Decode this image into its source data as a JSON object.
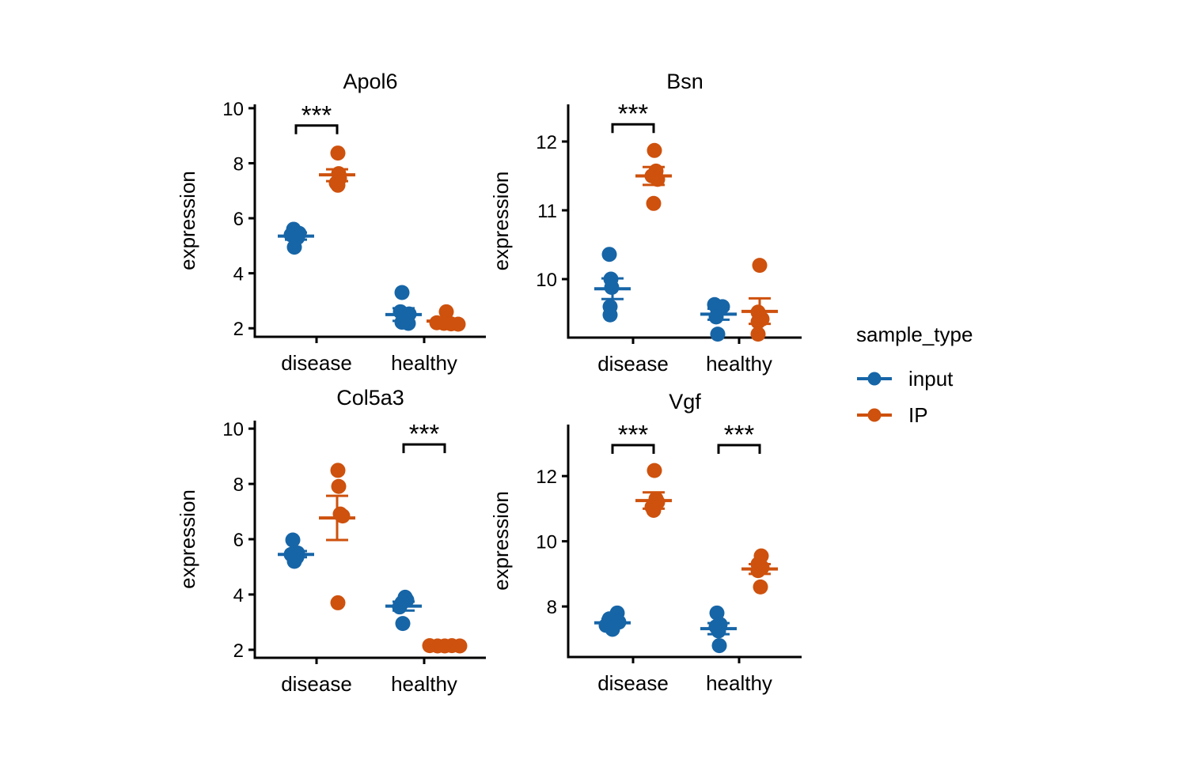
{
  "page": {
    "background": "#ffffff"
  },
  "legend": {
    "title": "sample_type",
    "items": [
      {
        "label": "input",
        "color": "#1665A7"
      },
      {
        "label": "IP",
        "color": "#CE510D"
      }
    ]
  },
  "chart_data": {
    "type": "scatter",
    "description": "Faceted dot plots of gene expression by condition, colored by sample_type, with mean and SEM error bars and significance brackets",
    "categories": [
      "disease",
      "healthy"
    ],
    "series_names": [
      "input",
      "IP"
    ],
    "colors": {
      "input": "#1665A7",
      "IP": "#CE510D"
    },
    "ylabel": "expression",
    "legend_position": "right",
    "facets": [
      {
        "title": "Apol6",
        "ylabel": "expression",
        "ylim": [
          1.69,
          10.14
        ],
        "yticks": [
          2,
          4,
          6,
          8,
          10
        ],
        "groups": [
          {
            "category": "disease",
            "series": "input",
            "mean": 5.35,
            "lo": 5.22,
            "hi": 5.48,
            "points": [
              {
                "v": 5.6,
                "dx": -3
              },
              {
                "v": 5.45,
                "dx": 4
              },
              {
                "v": 5.4,
                "dx": -6
              },
              {
                "v": 5.3,
                "dx": 2
              },
              {
                "v": 4.95,
                "dx": -2
              }
            ]
          },
          {
            "category": "disease",
            "series": "IP",
            "mean": 7.58,
            "lo": 7.35,
            "hi": 7.78,
            "points": [
              {
                "v": 8.37,
                "dx": 1
              },
              {
                "v": 7.62,
                "dx": 2
              },
              {
                "v": 7.45,
                "dx": 3
              },
              {
                "v": 7.28,
                "dx": -1
              },
              {
                "v": 7.2,
                "dx": 1
              }
            ]
          },
          {
            "category": "healthy",
            "series": "input",
            "mean": 2.5,
            "lo": 2.27,
            "hi": 2.73,
            "points": [
              {
                "v": 3.3,
                "dx": -2
              },
              {
                "v": 2.6,
                "dx": -4
              },
              {
                "v": 2.52,
                "dx": 7
              },
              {
                "v": 2.22,
                "dx": -2
              },
              {
                "v": 2.18,
                "dx": 6
              }
            ]
          },
          {
            "category": "healthy",
            "series": "IP",
            "mean": 2.26,
            "lo": 2.17,
            "hi": 2.35,
            "points": [
              {
                "v": 2.6,
                "dx": 2
              },
              {
                "v": 2.2,
                "dx": -10
              },
              {
                "v": 2.18,
                "dx": -1
              },
              {
                "v": 2.16,
                "dx": 8
              },
              {
                "v": 2.15,
                "dx": 17
              }
            ]
          }
        ],
        "brackets": [
          {
            "category": "disease",
            "y": 9.37,
            "label": "***"
          }
        ]
      },
      {
        "title": "Bsn",
        "ylabel": "expression",
        "ylim": [
          9.15,
          12.54
        ],
        "yticks": [
          10,
          11,
          12
        ],
        "groups": [
          {
            "category": "disease",
            "series": "input",
            "mean": 9.86,
            "lo": 9.71,
            "hi": 10.01,
            "points": [
              {
                "v": 10.36,
                "dx": -4
              },
              {
                "v": 10.0,
                "dx": -2
              },
              {
                "v": 9.88,
                "dx": -1
              },
              {
                "v": 9.6,
                "dx": -3
              },
              {
                "v": 9.48,
                "dx": -3
              }
            ]
          },
          {
            "category": "disease",
            "series": "IP",
            "mean": 11.5,
            "lo": 11.37,
            "hi": 11.63,
            "points": [
              {
                "v": 11.87,
                "dx": 1
              },
              {
                "v": 11.57,
                "dx": 3
              },
              {
                "v": 11.5,
                "dx": -2
              },
              {
                "v": 11.45,
                "dx": 5
              },
              {
                "v": 11.1,
                "dx": 0
              }
            ]
          },
          {
            "category": "healthy",
            "series": "input",
            "mean": 9.49,
            "lo": 9.41,
            "hi": 9.57,
            "points": [
              {
                "v": 9.63,
                "dx": -5
              },
              {
                "v": 9.6,
                "dx": 5
              },
              {
                "v": 9.55,
                "dx": -1
              },
              {
                "v": 9.45,
                "dx": -3
              },
              {
                "v": 9.2,
                "dx": -1
              }
            ]
          },
          {
            "category": "healthy",
            "series": "IP",
            "mean": 9.53,
            "lo": 9.35,
            "hi": 9.72,
            "points": [
              {
                "v": 10.2,
                "dx": 0
              },
              {
                "v": 9.52,
                "dx": -2
              },
              {
                "v": 9.42,
                "dx": 3
              },
              {
                "v": 9.38,
                "dx": -2
              },
              {
                "v": 9.2,
                "dx": -2
              }
            ]
          }
        ],
        "brackets": [
          {
            "category": "disease",
            "y": 12.25,
            "label": "***"
          }
        ]
      },
      {
        "title": "Col5a3",
        "ylabel": "expression",
        "ylim": [
          1.71,
          10.29
        ],
        "yticks": [
          2,
          4,
          6,
          8,
          10
        ],
        "groups": [
          {
            "category": "disease",
            "series": "input",
            "mean": 5.45,
            "lo": 5.35,
            "hi": 5.57,
            "points": [
              {
                "v": 5.97,
                "dx": -4
              },
              {
                "v": 5.5,
                "dx": 2
              },
              {
                "v": 5.45,
                "dx": -6
              },
              {
                "v": 5.35,
                "dx": 1
              },
              {
                "v": 5.2,
                "dx": -2
              }
            ]
          },
          {
            "category": "disease",
            "series": "IP",
            "mean": 6.77,
            "lo": 5.97,
            "hi": 7.57,
            "points": [
              {
                "v": 8.49,
                "dx": 1
              },
              {
                "v": 7.91,
                "dx": 2
              },
              {
                "v": 6.91,
                "dx": 4
              },
              {
                "v": 6.84,
                "dx": 7
              },
              {
                "v": 3.7,
                "dx": 1
              }
            ]
          },
          {
            "category": "healthy",
            "series": "input",
            "mean": 3.58,
            "lo": 3.42,
            "hi": 3.74,
            "points": [
              {
                "v": 3.9,
                "dx": 2
              },
              {
                "v": 3.8,
                "dx": 4
              },
              {
                "v": 3.7,
                "dx": -2
              },
              {
                "v": 3.55,
                "dx": -5
              },
              {
                "v": 2.95,
                "dx": -1
              }
            ]
          },
          {
            "category": "healthy",
            "series": "IP",
            "mean": 2.15,
            "lo": 2.13,
            "hi": 2.17,
            "points": [
              {
                "v": 2.15,
                "dx": -19
              },
              {
                "v": 2.14,
                "dx": -9
              },
              {
                "v": 2.14,
                "dx": 0
              },
              {
                "v": 2.15,
                "dx": 9
              },
              {
                "v": 2.14,
                "dx": 19
              }
            ]
          }
        ],
        "brackets": [
          {
            "category": "healthy",
            "y": 9.43,
            "label": "***"
          }
        ]
      },
      {
        "title": "Vgf",
        "ylabel": "expression",
        "ylim": [
          6.45,
          13.58
        ],
        "yticks": [
          8,
          10,
          12
        ],
        "groups": [
          {
            "category": "disease",
            "series": "input",
            "mean": 7.5,
            "lo": 7.38,
            "hi": 7.62,
            "points": [
              {
                "v": 7.8,
                "dx": 6
              },
              {
                "v": 7.62,
                "dx": -4
              },
              {
                "v": 7.52,
                "dx": 8
              },
              {
                "v": 7.42,
                "dx": -8
              },
              {
                "v": 7.3,
                "dx": 0
              }
            ]
          },
          {
            "category": "disease",
            "series": "IP",
            "mean": 11.25,
            "lo": 11.0,
            "hi": 11.5,
            "points": [
              {
                "v": 12.17,
                "dx": 1
              },
              {
                "v": 11.3,
                "dx": 3
              },
              {
                "v": 11.2,
                "dx": 5
              },
              {
                "v": 11.05,
                "dx": -2
              },
              {
                "v": 10.95,
                "dx": 0
              }
            ]
          },
          {
            "category": "healthy",
            "series": "input",
            "mean": 7.32,
            "lo": 7.15,
            "hi": 7.49,
            "points": [
              {
                "v": 7.8,
                "dx": -2
              },
              {
                "v": 7.45,
                "dx": 2
              },
              {
                "v": 7.38,
                "dx": -3
              },
              {
                "v": 7.25,
                "dx": 0
              },
              {
                "v": 6.8,
                "dx": 1
              }
            ]
          },
          {
            "category": "healthy",
            "series": "IP",
            "mean": 9.15,
            "lo": 9.0,
            "hi": 9.3,
            "points": [
              {
                "v": 9.55,
                "dx": 2
              },
              {
                "v": 9.3,
                "dx": -2
              },
              {
                "v": 9.2,
                "dx": 3
              },
              {
                "v": 9.1,
                "dx": -2
              },
              {
                "v": 8.6,
                "dx": 1
              }
            ]
          }
        ],
        "brackets": [
          {
            "category": "disease",
            "y": 12.95,
            "label": "***"
          },
          {
            "category": "healthy",
            "y": 12.95,
            "label": "***"
          }
        ]
      }
    ]
  }
}
